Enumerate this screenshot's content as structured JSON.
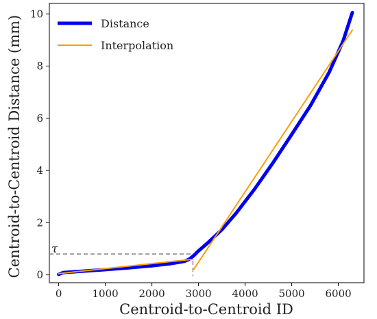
{
  "chart_data": {
    "type": "line",
    "xlabel": "Centroid-to-Centroid ID",
    "ylabel": "Centroid-to-Centroid Distance (mm)",
    "xlim": [
      -200,
      6550
    ],
    "ylim": [
      -0.3,
      10.4
    ],
    "xticks": [
      0,
      1000,
      2000,
      3000,
      4000,
      5000,
      6000
    ],
    "yticks": [
      0,
      2,
      4,
      6,
      8,
      10
    ],
    "legend_position": "top-left",
    "grid": false,
    "series": [
      {
        "name": "Distance",
        "color": "#0000ee",
        "x": [
          0,
          100,
          500,
          1000,
          1500,
          2000,
          2400,
          2700,
          2800,
          2900,
          3000,
          3200,
          3500,
          3800,
          4200,
          4600,
          5000,
          5400,
          5800,
          6100,
          6300
        ],
        "y": [
          0.02,
          0.09,
          0.14,
          0.2,
          0.27,
          0.35,
          0.43,
          0.52,
          0.6,
          0.74,
          0.92,
          1.23,
          1.73,
          2.35,
          3.28,
          4.3,
          5.38,
          6.48,
          7.75,
          8.95,
          10.05
        ]
      },
      {
        "name": "Interpolation",
        "color": "#f5a00b",
        "segments": [
          {
            "x": [
              0,
              2880
            ],
            "y": [
              0.05,
              0.6
            ]
          },
          {
            "x": [
              2900,
              6300
            ],
            "y": [
              0.22,
              9.38
            ]
          }
        ]
      }
    ],
    "annotations": [
      {
        "text": "τ",
        "type": "threshold",
        "x": 2880,
        "y": 0.8
      }
    ]
  }
}
